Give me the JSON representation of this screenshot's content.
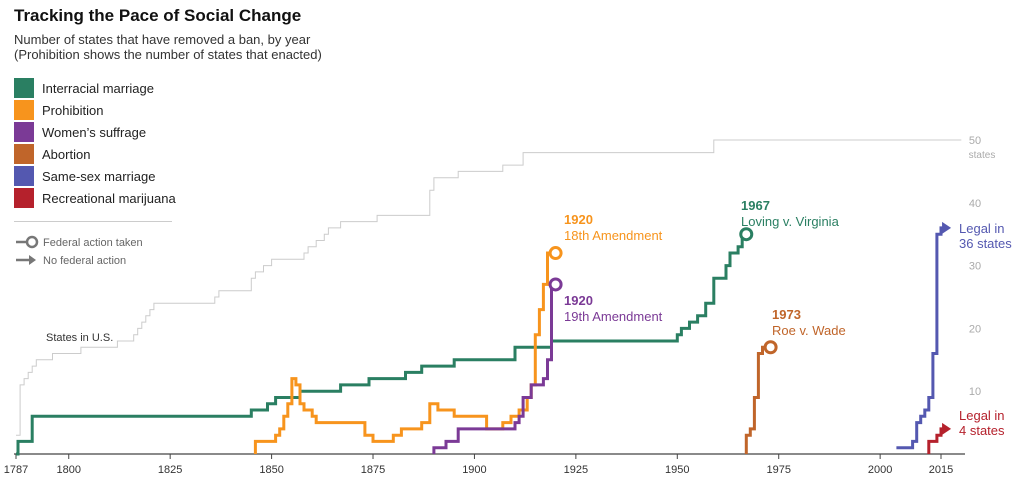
{
  "header": {
    "title": "Tracking the Pace of Social Change",
    "subtitle_line1": "Number of states that have removed a ban, by year",
    "subtitle_line2": "(Prohibition shows the number of states that enacted)"
  },
  "legend": {
    "items": [
      {
        "label": "Interracial marriage",
        "color": "#2a7f62"
      },
      {
        "label": "Prohibition",
        "color": "#f7941d"
      },
      {
        "label": "Women’s suffrage",
        "color": "#7b3a96"
      },
      {
        "label": "Abortion",
        "color": "#c0652a"
      },
      {
        "label": "Same-sex marriage",
        "color": "#5458b0"
      },
      {
        "label": "Recreational marijuana",
        "color": "#b5212c"
      }
    ],
    "federal_action_label": "Federal action taken",
    "no_federal_action_label": "No federal action"
  },
  "chart_data": {
    "type": "line",
    "step": true,
    "xlim": [
      1787,
      2020
    ],
    "ylim": [
      0,
      52
    ],
    "x_ticks": [
      1787,
      1800,
      1825,
      1850,
      1875,
      1900,
      1925,
      1950,
      1975,
      2000,
      2015
    ],
    "y_ticks": [
      10,
      20,
      30,
      40
    ],
    "y_top_tick": {
      "value": 50,
      "label": "50",
      "unit": "states"
    },
    "grid": false,
    "legend_position": "top-left",
    "reference_series": {
      "label": "States in U.S.",
      "color": "#cccccc",
      "points": [
        [
          1787,
          3
        ],
        [
          1788,
          11
        ],
        [
          1789,
          12
        ],
        [
          1790,
          13
        ],
        [
          1791,
          14
        ],
        [
          1792,
          15
        ],
        [
          1796,
          16
        ],
        [
          1803,
          17
        ],
        [
          1812,
          18
        ],
        [
          1816,
          19
        ],
        [
          1817,
          20
        ],
        [
          1818,
          21
        ],
        [
          1819,
          22
        ],
        [
          1820,
          23
        ],
        [
          1821,
          24
        ],
        [
          1836,
          25
        ],
        [
          1837,
          26
        ],
        [
          1845,
          28
        ],
        [
          1846,
          29
        ],
        [
          1848,
          30
        ],
        [
          1850,
          31
        ],
        [
          1858,
          32
        ],
        [
          1859,
          33
        ],
        [
          1861,
          34
        ],
        [
          1863,
          35
        ],
        [
          1864,
          36
        ],
        [
          1867,
          37
        ],
        [
          1876,
          38
        ],
        [
          1889,
          42
        ],
        [
          1890,
          44
        ],
        [
          1896,
          45
        ],
        [
          1907,
          46
        ],
        [
          1912,
          48
        ],
        [
          1959,
          50
        ],
        [
          2020,
          50
        ]
      ]
    },
    "series": [
      {
        "name": "Interracial marriage",
        "color": "#2a7f62",
        "end_marker": "circle",
        "annotation_year": "1967",
        "annotation_text": "Loving v. Virginia",
        "points": [
          [
            1787,
            0
          ],
          [
            1787.5,
            2
          ],
          [
            1791,
            6
          ],
          [
            1832,
            6
          ],
          [
            1843,
            6
          ],
          [
            1845,
            7
          ],
          [
            1849,
            8
          ],
          [
            1851,
            9
          ],
          [
            1855,
            9
          ],
          [
            1857,
            10
          ],
          [
            1864,
            10
          ],
          [
            1867,
            11
          ],
          [
            1870,
            11
          ],
          [
            1874,
            12
          ],
          [
            1881,
            12
          ],
          [
            1883,
            13
          ],
          [
            1887,
            14
          ],
          [
            1895,
            15
          ],
          [
            1910,
            17
          ],
          [
            1919,
            18
          ],
          [
            1948,
            18
          ],
          [
            1950,
            19
          ],
          [
            1951,
            20
          ],
          [
            1953,
            21
          ],
          [
            1955,
            22
          ],
          [
            1957,
            24
          ],
          [
            1959,
            28
          ],
          [
            1962,
            30
          ],
          [
            1963,
            32
          ],
          [
            1965,
            33
          ],
          [
            1966,
            35
          ],
          [
            1967,
            35
          ]
        ]
      },
      {
        "name": "Prohibition",
        "color": "#f7941d",
        "end_marker": "circle",
        "annotation_year": "1920",
        "annotation_text": "18th Amendment",
        "points": [
          [
            1846,
            0
          ],
          [
            1846,
            2
          ],
          [
            1849,
            2
          ],
          [
            1851,
            3
          ],
          [
            1852,
            4
          ],
          [
            1853,
            6
          ],
          [
            1854,
            8
          ],
          [
            1855,
            12
          ],
          [
            1856,
            11
          ],
          [
            1857,
            8
          ],
          [
            1858,
            7
          ],
          [
            1860,
            6
          ],
          [
            1861,
            5
          ],
          [
            1871,
            5
          ],
          [
            1873,
            3
          ],
          [
            1875,
            2
          ],
          [
            1880,
            3
          ],
          [
            1882,
            4
          ],
          [
            1887,
            5
          ],
          [
            1889,
            8
          ],
          [
            1891,
            7
          ],
          [
            1895,
            6
          ],
          [
            1903,
            4
          ],
          [
            1907,
            5
          ],
          [
            1909,
            6
          ],
          [
            1911,
            7
          ],
          [
            1913,
            9
          ],
          [
            1914,
            11
          ],
          [
            1915,
            19
          ],
          [
            1916,
            23
          ],
          [
            1917,
            27
          ],
          [
            1918,
            32
          ],
          [
            1919,
            32
          ],
          [
            1920,
            32
          ]
        ]
      },
      {
        "name": "Women’s suffrage",
        "color": "#7b3a96",
        "end_marker": "circle",
        "annotation_year": "1920",
        "annotation_text": "19th Amendment",
        "points": [
          [
            1890,
            0
          ],
          [
            1890,
            1
          ],
          [
            1893,
            2
          ],
          [
            1896,
            4
          ],
          [
            1910,
            5
          ],
          [
            1911,
            6
          ],
          [
            1912,
            9
          ],
          [
            1914,
            11
          ],
          [
            1917,
            12
          ],
          [
            1918,
            15
          ],
          [
            1919,
            27
          ],
          [
            1920,
            27
          ]
        ]
      },
      {
        "name": "Abortion",
        "color": "#c0652a",
        "end_marker": "circle",
        "annotation_year": "1973",
        "annotation_text": "Roe v. Wade",
        "points": [
          [
            1967,
            0
          ],
          [
            1967,
            3
          ],
          [
            1968,
            4
          ],
          [
            1969,
            9
          ],
          [
            1970,
            16
          ],
          [
            1971,
            17
          ],
          [
            1973,
            17
          ]
        ]
      },
      {
        "name": "Same-sex marriage",
        "color": "#5458b0",
        "end_marker": "arrow",
        "annotation_year": "",
        "annotation_text": "Legal in 36 states",
        "points": [
          [
            2004,
            1
          ],
          [
            2008,
            2
          ],
          [
            2009,
            5
          ],
          [
            2010,
            6
          ],
          [
            2011,
            7
          ],
          [
            2012,
            9
          ],
          [
            2013,
            16
          ],
          [
            2014,
            35
          ],
          [
            2015,
            36
          ],
          [
            2016,
            36
          ]
        ]
      },
      {
        "name": "Recreational marijuana",
        "color": "#b5212c",
        "end_marker": "arrow",
        "annotation_year": "",
        "annotation_text": "Legal in 4 states",
        "points": [
          [
            2012,
            0
          ],
          [
            2012,
            2
          ],
          [
            2014,
            3
          ],
          [
            2015,
            4
          ],
          [
            2016,
            4
          ]
        ]
      }
    ]
  }
}
